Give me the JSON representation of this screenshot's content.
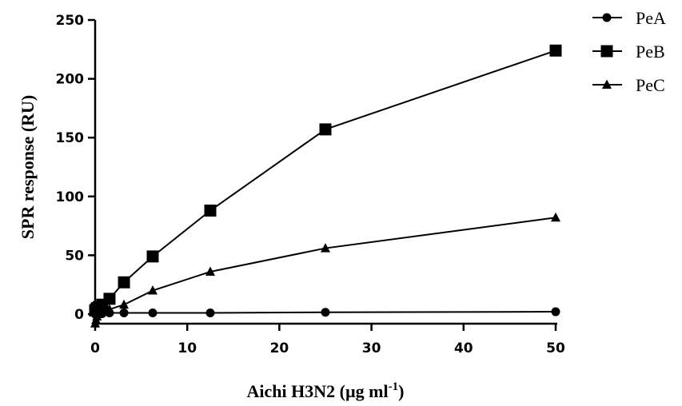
{
  "chart_data": {
    "type": "line",
    "title": "",
    "xlabel": "Aichi H3N2 (µg ml",
    "xlabel_sup": "-1",
    "xlabel_end": ")",
    "ylabel": "SPR response (RU)",
    "xlim": [
      0,
      50
    ],
    "ylim": [
      0,
      250
    ],
    "xticks": [
      0,
      10,
      20,
      30,
      40,
      50
    ],
    "yticks": [
      0,
      50,
      100,
      150,
      200,
      250
    ],
    "grid": false,
    "legend_position": "top-right",
    "series": [
      {
        "name": "PeA",
        "marker": "circle",
        "x": [
          0,
          0.1,
          0.2,
          0.39,
          0.78,
          1.56,
          3.13,
          6.25,
          12.5,
          25,
          50
        ],
        "y": [
          0,
          0,
          0,
          0.5,
          0.5,
          1,
          1,
          1,
          1,
          1.5,
          2
        ]
      },
      {
        "name": "PeB",
        "marker": "square",
        "x": [
          0,
          0.1,
          0.2,
          0.39,
          0.78,
          1.56,
          3.13,
          6.25,
          12.5,
          25,
          50
        ],
        "y": [
          3,
          4,
          5,
          6,
          8,
          13,
          27,
          49,
          88,
          157,
          224
        ]
      },
      {
        "name": "PeC",
        "marker": "triangle",
        "x": [
          0,
          0.1,
          0.2,
          0.39,
          0.78,
          1.56,
          3.13,
          6.25,
          12.5,
          25,
          50
        ],
        "y": [
          -8,
          -5,
          -2,
          0,
          2,
          4,
          8,
          20,
          36,
          56,
          82
        ]
      }
    ]
  }
}
